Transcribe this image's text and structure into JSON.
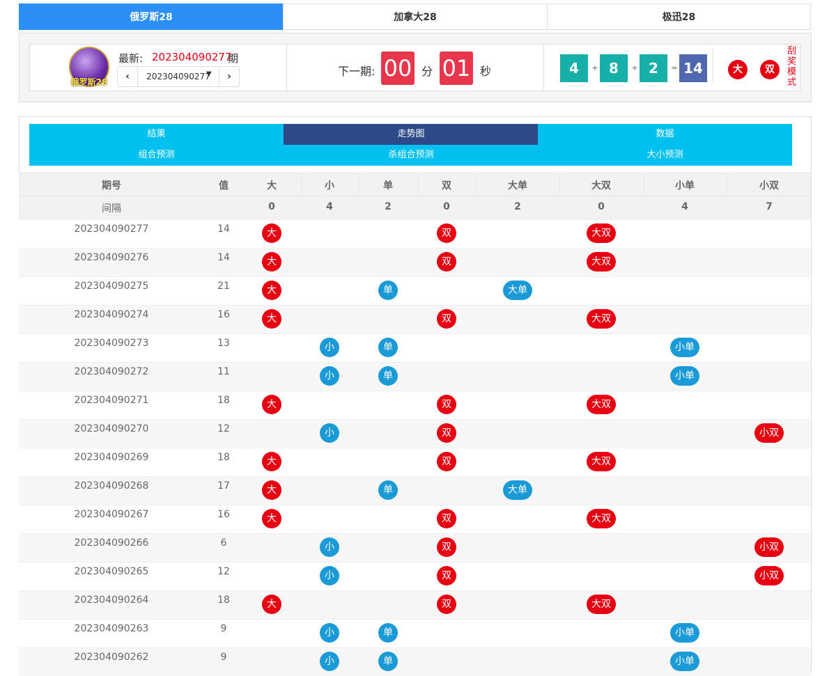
{
  "tabs": [
    "俄罗斯28",
    "加拿大28",
    "极迅28"
  ],
  "header": {
    "logo": "俄罗斯28",
    "latest_label": "最新:",
    "latest_issue": "202304090277",
    "issue_suffix": "期",
    "selector": "202304090277",
    "next_label": "下一期:",
    "minutes": "00",
    "minute_unit": "分",
    "seconds": "01",
    "second_unit": "秒",
    "numbers": [
      "4",
      "8",
      "2",
      "14"
    ],
    "operators": [
      "+",
      "+",
      "="
    ],
    "tags": [
      "大",
      "双"
    ],
    "mode": "刮奖模式"
  },
  "nav": [
    "结果",
    "走势图",
    "数据",
    "组合预测",
    "杀组合预测",
    "大小预测"
  ],
  "table": {
    "headers": [
      "期号",
      "值",
      "大",
      "小",
      "单",
      "双",
      "大单",
      "大双",
      "小单",
      "小双"
    ],
    "gap_label": "间隔",
    "gaps": [
      0,
      4,
      2,
      0,
      2,
      0,
      4,
      7
    ],
    "rows": [
      {
        "issue": "202304090277",
        "value": 14,
        "cells": [
          "大",
          null,
          null,
          "双",
          null,
          "大双",
          null,
          null
        ]
      },
      {
        "issue": "202304090276",
        "value": 14,
        "cells": [
          "大",
          null,
          null,
          "双",
          null,
          "大双",
          null,
          null
        ]
      },
      {
        "issue": "202304090275",
        "value": 21,
        "cells": [
          "大",
          null,
          "单",
          null,
          "大单",
          null,
          null,
          null
        ]
      },
      {
        "issue": "202304090274",
        "value": 16,
        "cells": [
          "大",
          null,
          null,
          "双",
          null,
          "大双",
          null,
          null
        ]
      },
      {
        "issue": "202304090273",
        "value": 13,
        "cells": [
          null,
          "小",
          "单",
          null,
          null,
          null,
          "小单",
          null
        ]
      },
      {
        "issue": "202304090272",
        "value": 11,
        "cells": [
          null,
          "小",
          "单",
          null,
          null,
          null,
          "小单",
          null
        ]
      },
      {
        "issue": "202304090271",
        "value": 18,
        "cells": [
          "大",
          null,
          null,
          "双",
          null,
          "大双",
          null,
          null
        ]
      },
      {
        "issue": "202304090270",
        "value": 12,
        "cells": [
          null,
          "小",
          null,
          "双",
          null,
          null,
          null,
          "小双"
        ]
      },
      {
        "issue": "202304090269",
        "value": 18,
        "cells": [
          "大",
          null,
          null,
          "双",
          null,
          "大双",
          null,
          null
        ]
      },
      {
        "issue": "202304090268",
        "value": 17,
        "cells": [
          "大",
          null,
          "单",
          null,
          "大单",
          null,
          null,
          null
        ]
      },
      {
        "issue": "202304090267",
        "value": 16,
        "cells": [
          "大",
          null,
          null,
          "双",
          null,
          "大双",
          null,
          null
        ]
      },
      {
        "issue": "202304090266",
        "value": 6,
        "cells": [
          null,
          "小",
          null,
          "双",
          null,
          null,
          null,
          "小双"
        ]
      },
      {
        "issue": "202304090265",
        "value": 12,
        "cells": [
          null,
          "小",
          null,
          "双",
          null,
          null,
          null,
          "小双"
        ]
      },
      {
        "issue": "202304090264",
        "value": 18,
        "cells": [
          "大",
          null,
          null,
          "双",
          null,
          "大双",
          null,
          null
        ]
      },
      {
        "issue": "202304090263",
        "value": 9,
        "cells": [
          null,
          "小",
          "单",
          null,
          null,
          null,
          "小单",
          null
        ]
      },
      {
        "issue": "202304090262",
        "value": 9,
        "cells": [
          null,
          "小",
          "单",
          null,
          null,
          null,
          "小单",
          null
        ]
      }
    ]
  }
}
